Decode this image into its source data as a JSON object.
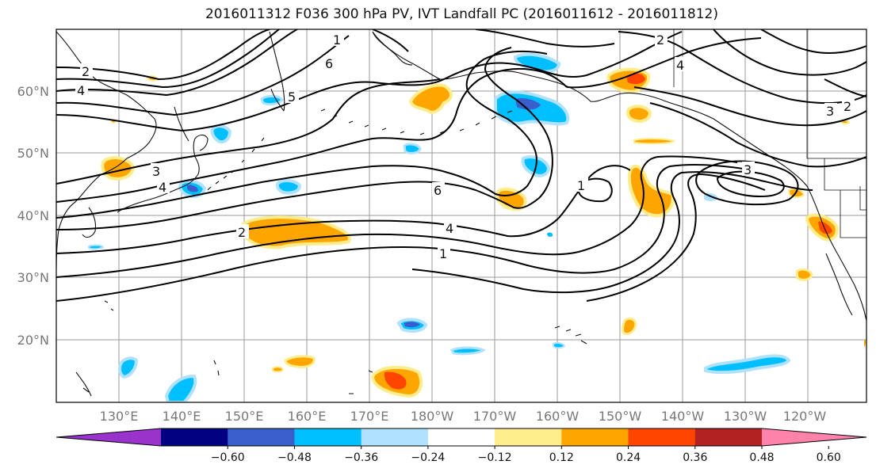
{
  "title": "2016011312 F036 300 hPa PV, IVT Landfall PC (2016011612 - 2016011812)",
  "map": {
    "lat_labels": [
      "60°N",
      "50°N",
      "40°N",
      "30°N",
      "20°N"
    ],
    "lon_labels": [
      "130°E",
      "140°E",
      "150°E",
      "160°E",
      "170°E",
      "180°W",
      "170°W",
      "160°W",
      "150°W",
      "140°W",
      "130°W",
      "120°W"
    ],
    "contour_labels": [
      "2",
      "4",
      "6",
      "5",
      "3",
      "1",
      "2",
      "4",
      "1",
      "6",
      "4",
      "1",
      "2",
      "3",
      "4",
      "3",
      "2"
    ]
  },
  "colorbar": {
    "colors": [
      "#9933cc",
      "#000080",
      "#3a5fcd",
      "#00bfff",
      "#b0e2ff",
      "#ffffff",
      "#ffec8b",
      "#ffa500",
      "#ff4500",
      "#b22222",
      "#ff82ab"
    ],
    "tick_labels": [
      "−0.60",
      "−0.48",
      "−0.36",
      "−0.24",
      "−0.12",
      "0.12",
      "0.24",
      "0.36",
      "0.48",
      "0.60"
    ]
  }
}
